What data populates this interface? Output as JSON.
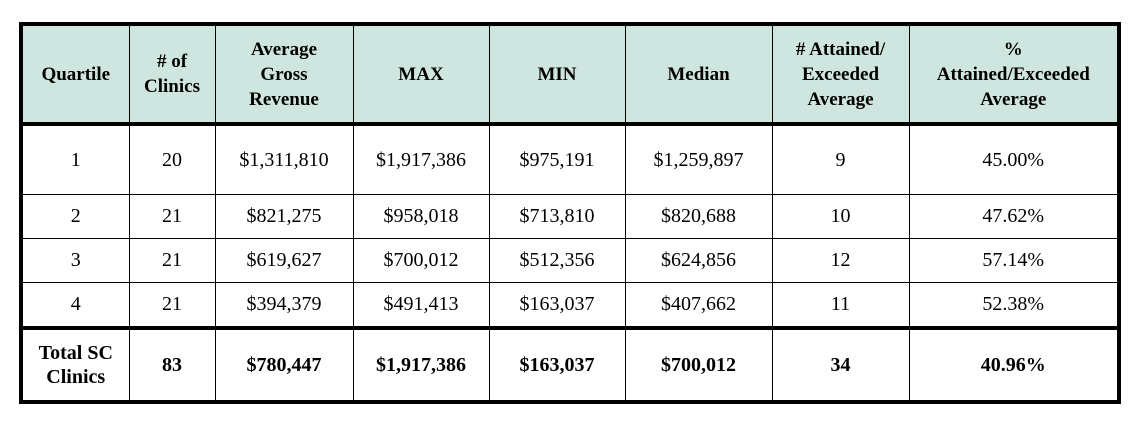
{
  "table": {
    "headers": [
      [
        "Quartile"
      ],
      [
        "# of",
        "Clinics"
      ],
      [
        "Average",
        "Gross",
        "Revenue"
      ],
      [
        "MAX"
      ],
      [
        "MIN"
      ],
      [
        "Median"
      ],
      [
        "# Attained/",
        "Exceeded",
        "Average"
      ],
      [
        "%",
        "Attained/Exceeded",
        "Average"
      ]
    ],
    "rows": [
      [
        "1",
        "20",
        "$1,311,810",
        "$1,917,386",
        "$975,191",
        "$1,259,897",
        "9",
        "45.00%"
      ],
      [
        "2",
        "21",
        "$821,275",
        "$958,018",
        "$713,810",
        "$820,688",
        "10",
        "47.62%"
      ],
      [
        "3",
        "21",
        "$619,627",
        "$700,012",
        "$512,356",
        "$624,856",
        "12",
        "57.14%"
      ],
      [
        "4",
        "21",
        "$394,379",
        "$491,413",
        "$163,037",
        "$407,662",
        "11",
        "52.38%"
      ]
    ],
    "total": {
      "label_lines": [
        "Total SC",
        "Clinics"
      ],
      "values": [
        "83",
        "$780,447",
        "$1,917,386",
        "$163,037",
        "$700,012",
        "34",
        "40.96%"
      ]
    },
    "header_color": "#cfe6e0"
  }
}
